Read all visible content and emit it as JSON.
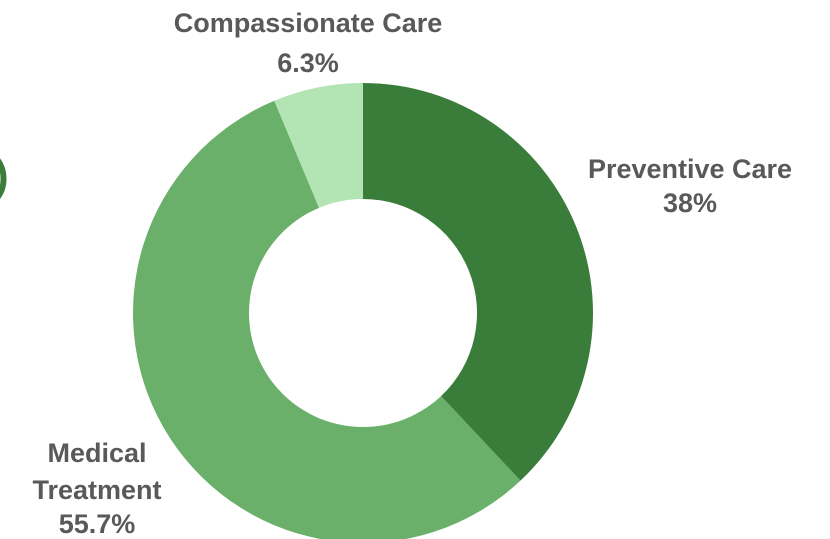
{
  "clipped_title_fragment": ")",
  "chart_data": {
    "type": "pie",
    "donut": true,
    "slices": [
      {
        "label": "Preventive Care",
        "value_label": "38%",
        "value": 38.0,
        "color": "#3a7d3a"
      },
      {
        "label": "Medical Treatment",
        "value_label": "55.7%",
        "value": 55.7,
        "color": "#6ab06a"
      },
      {
        "label": "Compassionate Care",
        "value_label": "6.3%",
        "value": 6.3,
        "color": "#b3e4b3"
      }
    ],
    "legend": "none"
  }
}
